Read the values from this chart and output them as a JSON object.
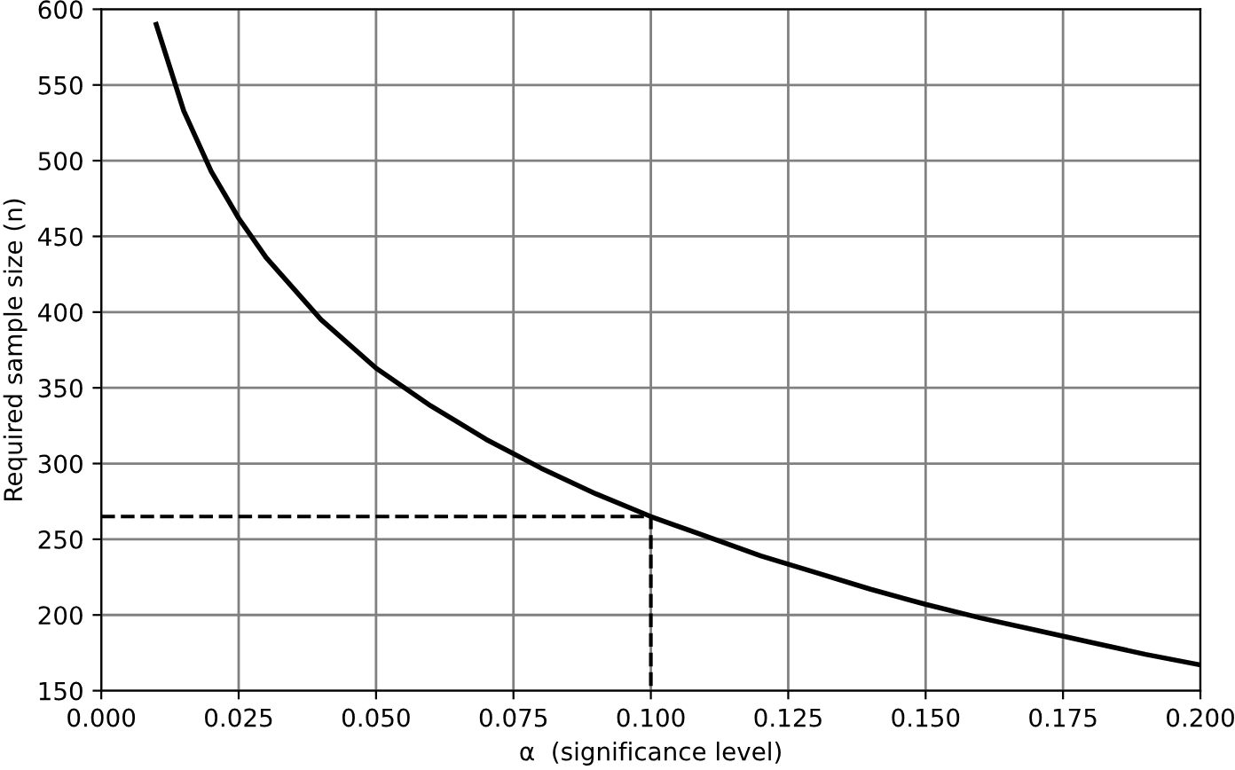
{
  "chart_data": {
    "type": "line",
    "xlabel": "α  (significance level)",
    "ylabel": "Required sample size (n)",
    "series": [
      {
        "color": "#000000",
        "line_style": "solid",
        "x": [
          0.01,
          0.015,
          0.02,
          0.025,
          0.03,
          0.04,
          0.05,
          0.06,
          0.07,
          0.08,
          0.09,
          0.1,
          0.11,
          0.12,
          0.13,
          0.14,
          0.15,
          0.16,
          0.17,
          0.18,
          0.19,
          0.2
        ],
        "values": [
          590,
          533,
          493,
          462,
          436,
          395,
          363,
          338,
          316,
          297,
          280,
          265,
          252,
          239,
          228,
          217,
          207,
          198,
          190,
          182,
          174,
          167
        ]
      },
      {
        "color": "#000000",
        "line_style": "dashed",
        "x": [
          0,
          0.1,
          0.1
        ],
        "values": [
          265,
          265,
          150
        ]
      }
    ],
    "xlim": [
      0,
      0.2
    ],
    "ylim": [
      150,
      600
    ],
    "xticks": [
      {
        "value": 0,
        "label": "0.000"
      },
      {
        "value": 0.025,
        "label": "0.025"
      },
      {
        "value": 0.05,
        "label": "0.050"
      },
      {
        "value": 0.075,
        "label": "0.075"
      },
      {
        "value": 0.1,
        "label": "0.100"
      },
      {
        "value": 0.125,
        "label": "0.125"
      },
      {
        "value": 0.15,
        "label": "0.150"
      },
      {
        "value": 0.175,
        "label": "0.175"
      },
      {
        "value": 0.2,
        "label": "0.200"
      }
    ],
    "yticks": [
      150,
      200,
      250,
      300,
      350,
      400,
      450,
      500,
      550,
      600
    ],
    "grid": true,
    "marker": "none"
  }
}
